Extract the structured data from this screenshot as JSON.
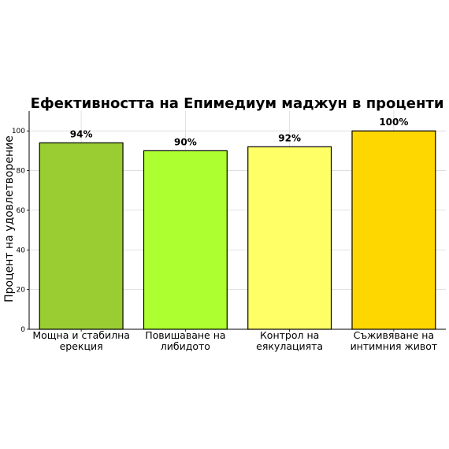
{
  "chart_data": {
    "type": "bar",
    "title": "Ефективността на Епимедиум маджун в проценти",
    "xlabel": "",
    "ylabel": "Процент на удовлетворение",
    "ylim": [
      0,
      110
    ],
    "yticks": [
      0,
      20,
      40,
      60,
      80,
      100
    ],
    "grid": true,
    "categories": [
      [
        "Мощна и стабилна",
        "ерекция"
      ],
      [
        "Повишаване на",
        "либидото"
      ],
      [
        "Контрол на",
        "еякулацията"
      ],
      [
        "Съживяване на",
        "интимния живот"
      ]
    ],
    "values": [
      94,
      90,
      92,
      100
    ],
    "data_labels": [
      "94%",
      "90%",
      "92%",
      "100%"
    ],
    "colors": [
      "#9acd32",
      "#adff2f",
      "#ffff66",
      "#ffd700"
    ]
  }
}
